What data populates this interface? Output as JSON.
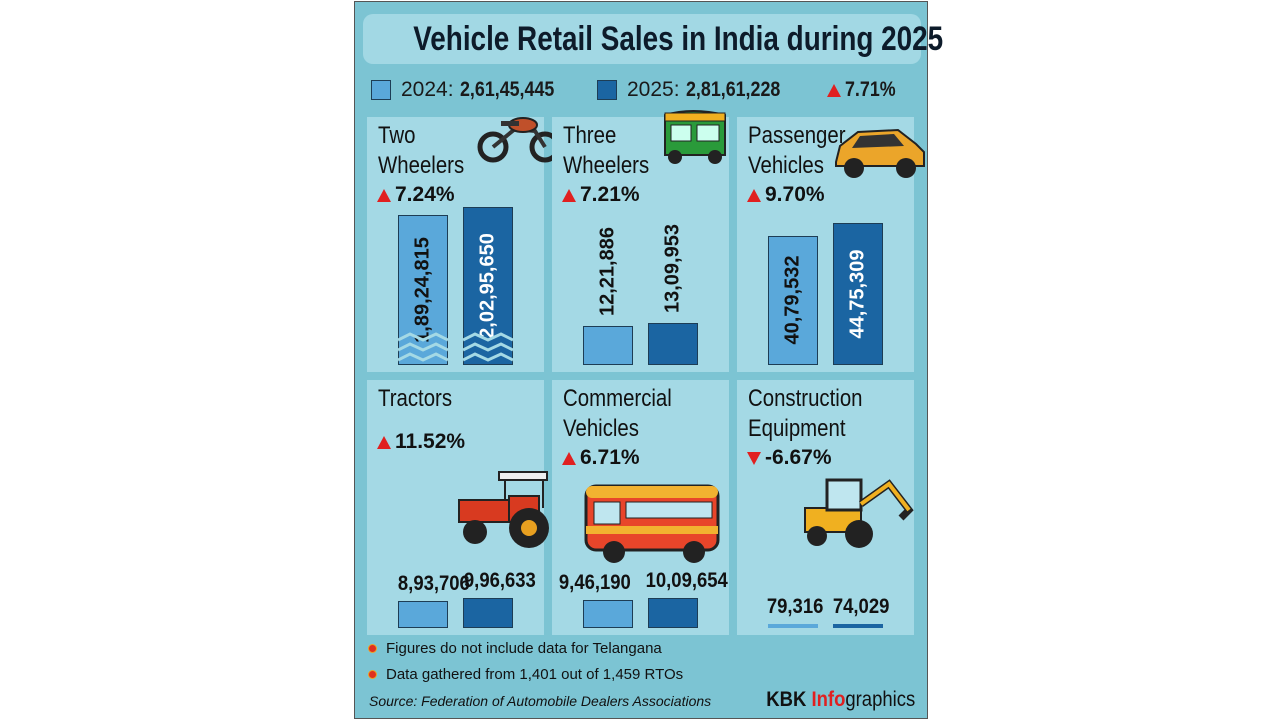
{
  "title": "Vehicle Retail Sales in India during 2025",
  "legend": {
    "y2024_label": "2024:",
    "y2024_total": "2,61,45,445",
    "y2025_label": "2025:",
    "y2025_total": "2,81,61,228",
    "total_change": "7.71%",
    "total_direction": "up"
  },
  "colors": {
    "y2024": "#5aa8da",
    "y2025": "#1b65a2",
    "up": "#e02020",
    "background": "#7cc4d3",
    "panel": "#a4d9e5"
  },
  "chart_data": {
    "type": "bar",
    "title": "Vehicle Retail Sales in India during 2025",
    "series_names": [
      "2024",
      "2025"
    ],
    "panels": [
      {
        "name": "Two Wheelers",
        "icon": "motorcycle-icon",
        "change": "7.24%",
        "direction": "up",
        "values": [
          18924815,
          20295650
        ],
        "labels": [
          "1,89,24,815",
          "2,02,95,650"
        ],
        "broken_axis": true
      },
      {
        "name": "Three Wheelers",
        "icon": "auto-rickshaw-icon",
        "change": "7.21%",
        "direction": "up",
        "values": [
          1221886,
          1309953
        ],
        "labels": [
          "12,21,886",
          "13,09,953"
        ]
      },
      {
        "name": "Passenger Vehicles",
        "icon": "suv-icon",
        "change": "9.70%",
        "direction": "up",
        "values": [
          4079532,
          4475309
        ],
        "labels": [
          "40,79,532",
          "44,75,309"
        ]
      },
      {
        "name": "Tractors",
        "icon": "tractor-icon",
        "change": "11.52%",
        "direction": "up",
        "values": [
          893706,
          996633
        ],
        "labels": [
          "8,93,706",
          "9,96,633"
        ]
      },
      {
        "name": "Commercial Vehicles",
        "icon": "bus-icon",
        "change": "6.71%",
        "direction": "up",
        "values": [
          946190,
          1009654
        ],
        "labels": [
          "9,46,190",
          "10,09,654"
        ]
      },
      {
        "name": "Construction Equipment",
        "icon": "backhoe-icon",
        "change": "-6.67%",
        "direction": "down",
        "values": [
          79316,
          74029
        ],
        "labels": [
          "79,316",
          "74,029"
        ]
      }
    ]
  },
  "notes": [
    "Figures do not include data for Telangana",
    "Data gathered from 1,401 out of 1,459 RTOs"
  ],
  "source": "Source: Federation of Automobile Dealers Associations",
  "brand": {
    "part1": "KBK ",
    "part2": "Info",
    "part3": "graphics"
  }
}
